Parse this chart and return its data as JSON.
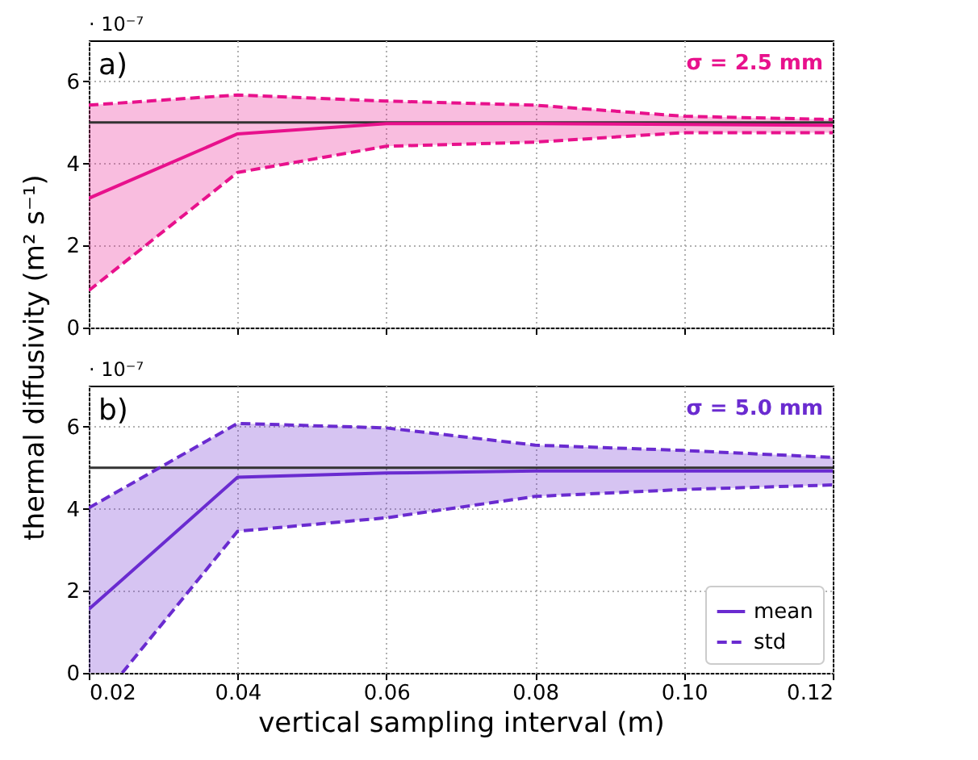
{
  "chart_data": [
    {
      "type": "line",
      "annotations": [
        "a)",
        "σ = 2.5 mm",
        "· 10⁻⁷"
      ],
      "ylabel": "thermal diffusivity (m² s⁻¹)",
      "xlim": [
        0.02,
        0.12
      ],
      "ylim": [
        0,
        7
      ],
      "xticks": [
        0.02,
        0.04,
        0.06,
        0.08,
        0.1,
        0.12
      ],
      "yticks": [
        0,
        2,
        4,
        6
      ],
      "tick_labels": "y",
      "grid": true,
      "legend": false,
      "x": [
        0.02,
        0.04,
        0.06,
        0.08,
        0.1,
        0.12
      ],
      "series": [
        {
          "color": "#e8118c",
          "line_style": "solid",
          "values": [
            3.15,
            4.72,
            4.97,
            4.97,
            4.95,
            4.93
          ],
          "lower": [
            0.9,
            3.78,
            4.42,
            4.52,
            4.75,
            4.75
          ],
          "upper": [
            5.42,
            5.67,
            5.52,
            5.42,
            5.15,
            5.07
          ]
        },
        {
          "color": "#e8118c",
          "line_style": "dashed",
          "values": [
            5.42,
            5.67,
            5.52,
            5.42,
            5.15,
            5.07
          ]
        },
        {
          "color": "#e8118c",
          "line_style": "dashed",
          "values": [
            0.9,
            3.78,
            4.42,
            4.52,
            4.75,
            4.75
          ]
        }
      ],
      "ref_lines": [
        {
          "axis": "y",
          "value": 5,
          "color": "#333333"
        }
      ]
    },
    {
      "type": "line",
      "annotations": [
        "b)",
        "σ = 5.0 mm",
        "· 10⁻⁷"
      ],
      "xlabel": "vertical sampling interval (m)",
      "xlim": [
        0.02,
        0.12
      ],
      "ylim": [
        0,
        7
      ],
      "xticks": [
        0.02,
        0.04,
        0.06,
        0.08,
        {
          "value": 0.1,
          "label": "0.10"
        },
        0.12
      ],
      "yticks": [
        0,
        2,
        4,
        6
      ],
      "grid": true,
      "legend": "bottom right",
      "x": [
        0.02,
        0.04,
        0.06,
        0.08,
        0.1,
        0.12
      ],
      "series": [
        {
          "name": "mean",
          "color": "#6a2bd0",
          "line_style": "solid",
          "x": [
            0.02,
            0.0245,
            0.04,
            0.06,
            0.08,
            0.1,
            0.12
          ],
          "values": [
            1.55,
            2.27,
            4.77,
            4.87,
            4.92,
            4.92,
            4.92
          ],
          "lower": [
            0,
            0,
            3.45,
            3.78,
            4.3,
            4.47,
            4.58
          ],
          "upper": [
            4.02,
            4.48,
            6.08,
            5.97,
            5.55,
            5.42,
            5.25
          ]
        },
        {
          "name": "std",
          "color": "#6a2bd0",
          "line_style": "dashed",
          "values": [
            4.02,
            6.08,
            5.97,
            5.55,
            5.42,
            5.25
          ]
        },
        {
          "color": "#6a2bd0",
          "line_style": "dashed",
          "x": [
            0.0245,
            0.04,
            0.06,
            0.08,
            0.1,
            0.12
          ],
          "values": [
            0,
            3.45,
            3.78,
            4.3,
            4.47,
            4.58
          ]
        }
      ],
      "ref_lines": [
        {
          "axis": "y",
          "value": 5,
          "color": "#333333"
        }
      ]
    }
  ]
}
